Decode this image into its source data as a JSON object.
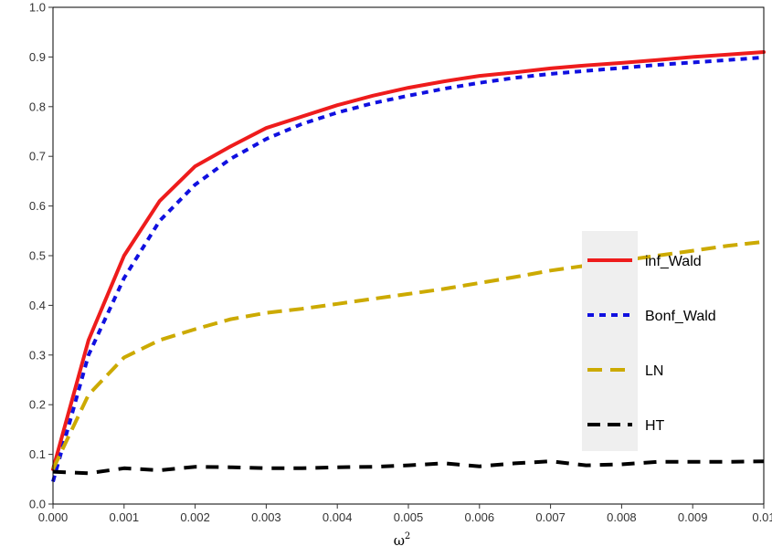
{
  "chart_data": {
    "type": "line",
    "xlabel": "ω",
    "xlabel_sup": "2",
    "ylabel": "",
    "xlim": [
      0,
      0.01
    ],
    "ylim": [
      0,
      1.0
    ],
    "x_ticks": [
      0,
      0.001,
      0.002,
      0.003,
      0.004,
      0.005,
      0.006,
      0.007,
      0.008,
      0.009,
      0.01
    ],
    "x_tick_labels": [
      "0.000",
      "0.001",
      "0.002",
      "0.003",
      "0.004",
      "0.005",
      "0.006",
      "0.007",
      "0.008",
      "0.009",
      "0.01"
    ],
    "y_ticks": [
      0,
      0.1,
      0.2,
      0.3,
      0.4,
      0.5,
      0.6,
      0.7,
      0.8,
      0.9,
      1.0
    ],
    "y_tick_labels": [
      "0.0",
      "0.1",
      "0.2",
      "0.3",
      "0.4",
      "0.5",
      "0.6",
      "0.7",
      "0.8",
      "0.9",
      "1.0"
    ],
    "grid": false,
    "legend_position": "right",
    "x": [
      0,
      0.0005,
      0.001,
      0.0015,
      0.002,
      0.0025,
      0.003,
      0.0035,
      0.004,
      0.0045,
      0.005,
      0.0055,
      0.006,
      0.0065,
      0.007,
      0.0075,
      0.008,
      0.0085,
      0.009,
      0.0095,
      0.01
    ],
    "series": [
      {
        "name": "inf_Wald",
        "color": "#ee1c1c",
        "style": "solid",
        "values": [
          0.07,
          0.33,
          0.5,
          0.61,
          0.68,
          0.72,
          0.757,
          0.78,
          0.803,
          0.822,
          0.838,
          0.851,
          0.862,
          0.869,
          0.877,
          0.883,
          0.888,
          0.894,
          0.9,
          0.905,
          0.91
        ]
      },
      {
        "name": "Bonf_Wald",
        "color": "#1010e0",
        "style": "dotted",
        "values": [
          0.045,
          0.3,
          0.455,
          0.57,
          0.643,
          0.695,
          0.735,
          0.765,
          0.788,
          0.807,
          0.822,
          0.836,
          0.848,
          0.858,
          0.866,
          0.872,
          0.878,
          0.884,
          0.889,
          0.894,
          0.899
        ]
      },
      {
        "name": "LN",
        "color": "#ccaa00",
        "style": "dashed",
        "values": [
          0.07,
          0.22,
          0.295,
          0.33,
          0.352,
          0.372,
          0.385,
          0.393,
          0.403,
          0.413,
          0.423,
          0.433,
          0.445,
          0.457,
          0.47,
          0.48,
          0.49,
          0.5,
          0.51,
          0.52,
          0.528
        ]
      },
      {
        "name": "HT",
        "color": "#000000",
        "style": "longdash",
        "values": [
          0.065,
          0.062,
          0.072,
          0.068,
          0.075,
          0.074,
          0.072,
          0.072,
          0.074,
          0.075,
          0.078,
          0.082,
          0.076,
          0.082,
          0.086,
          0.078,
          0.08,
          0.085,
          0.085,
          0.085,
          0.086
        ]
      }
    ]
  }
}
